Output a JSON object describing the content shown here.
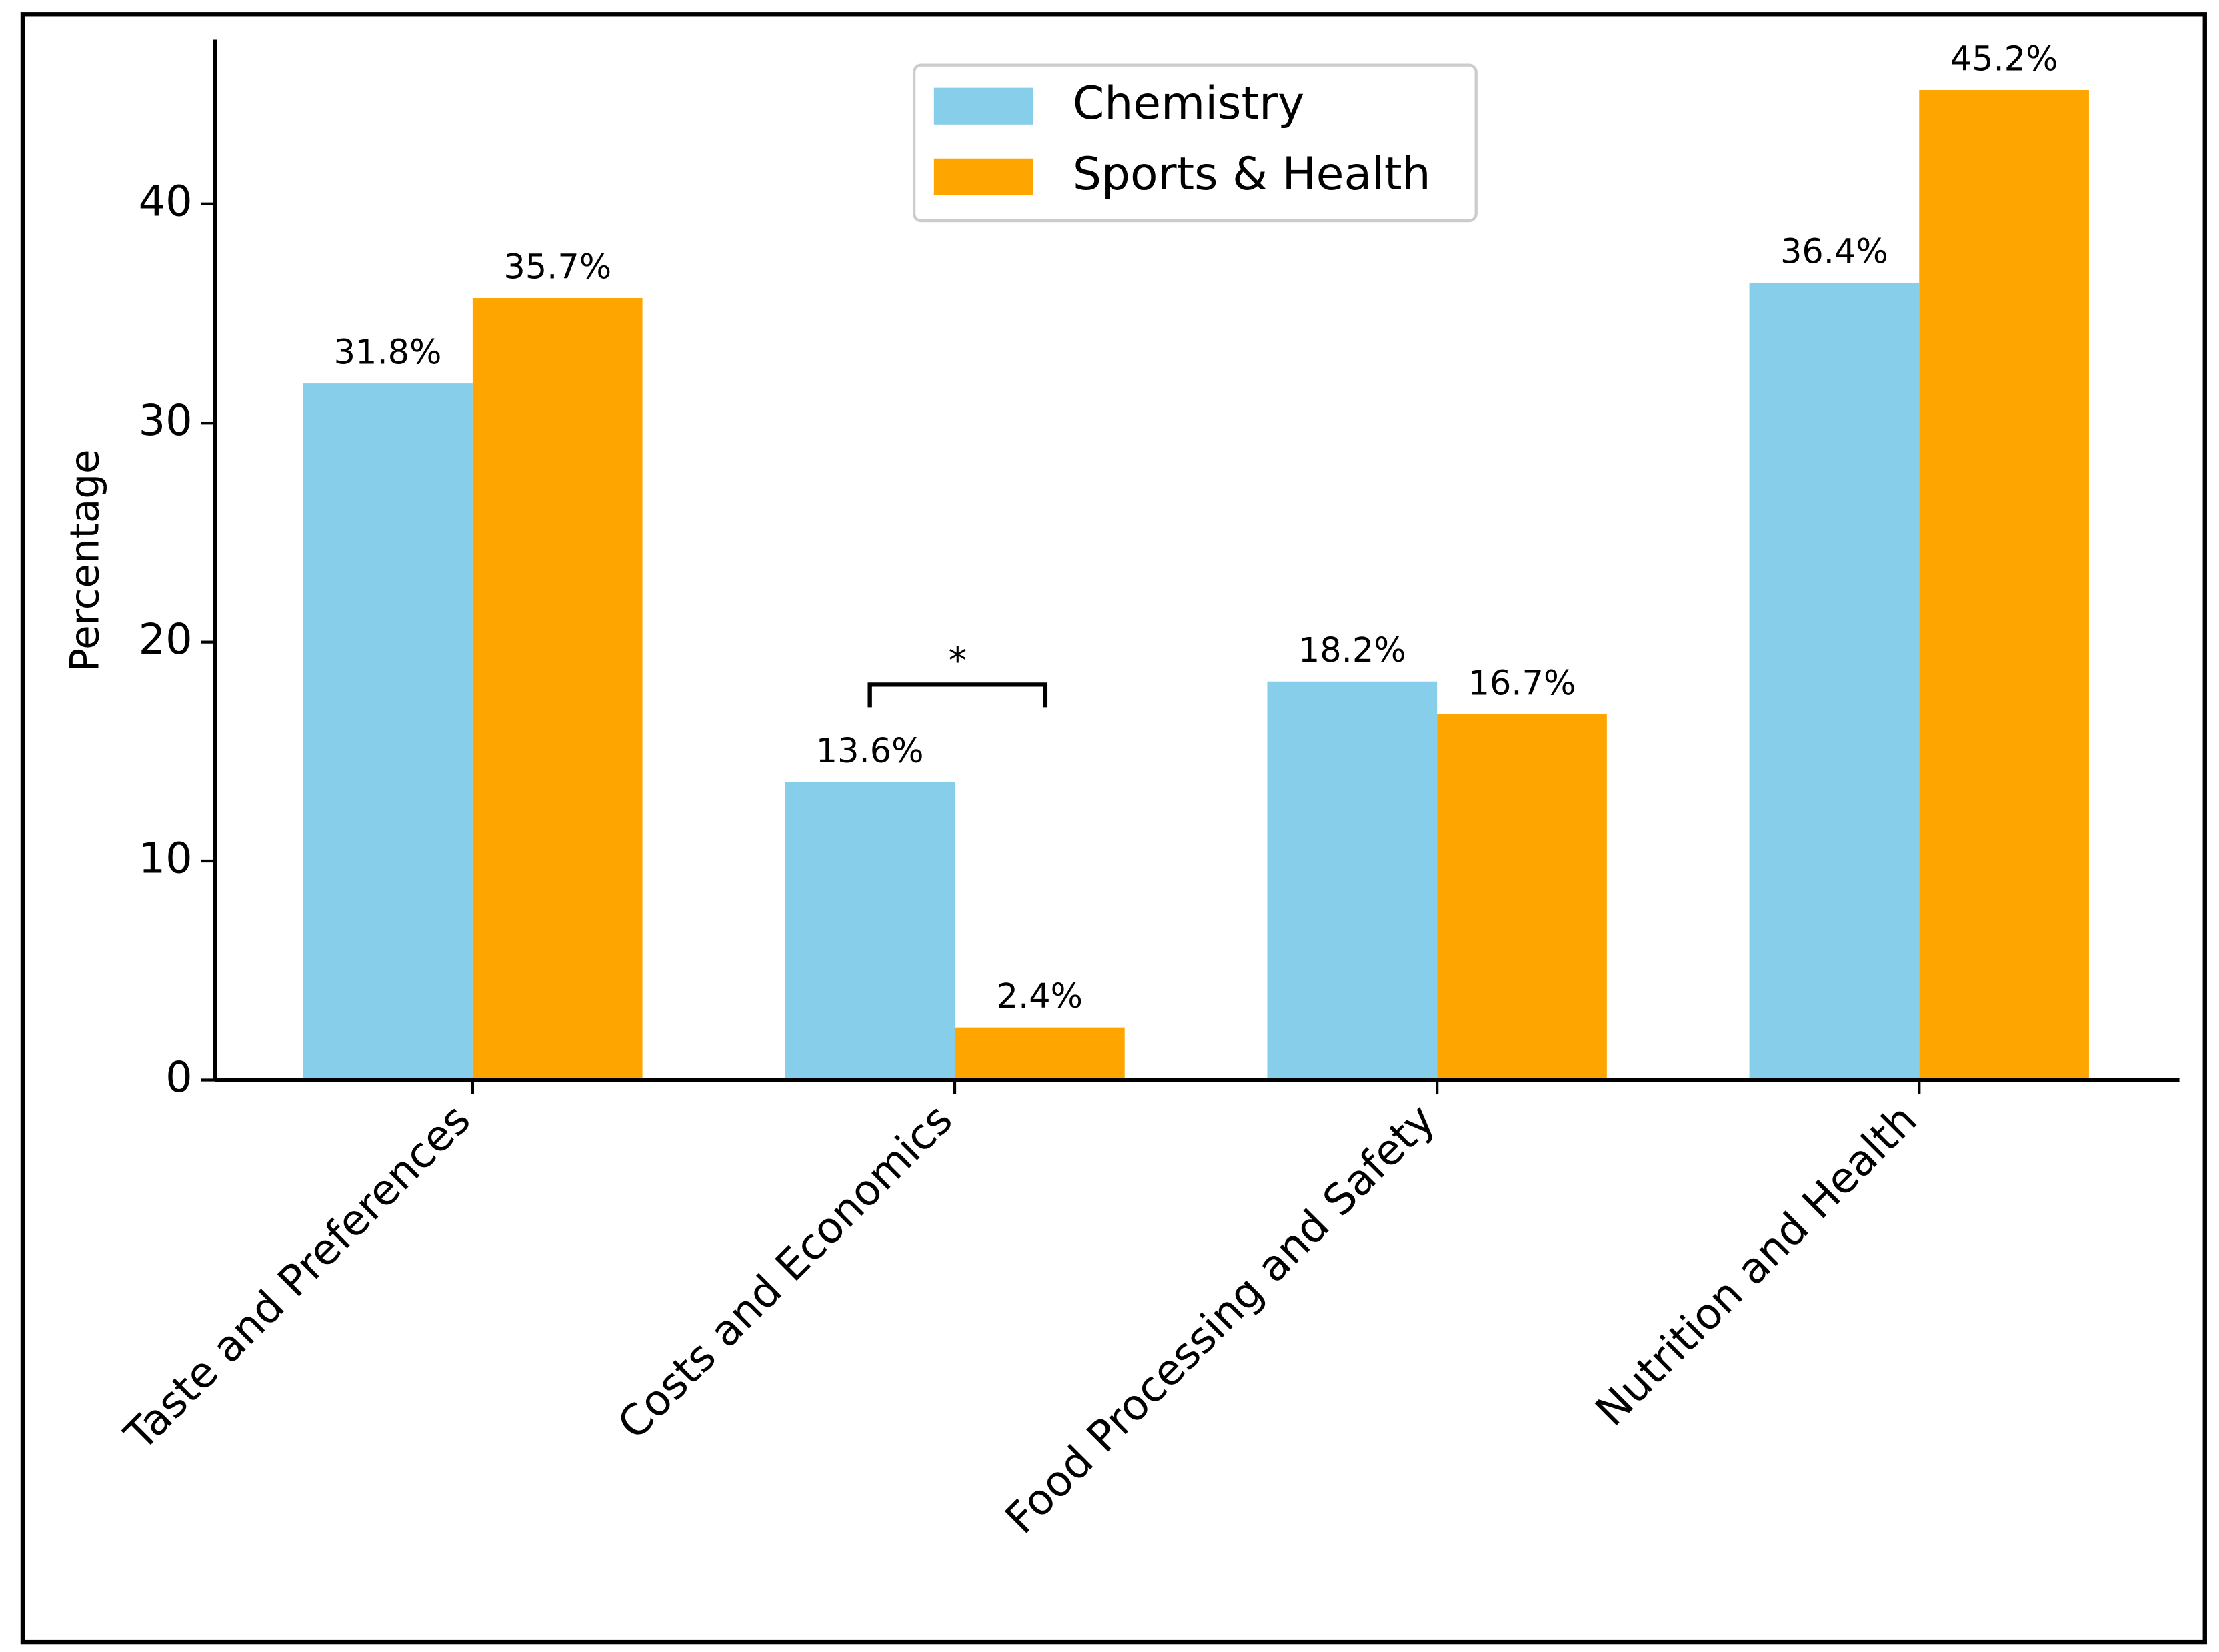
{
  "chart_data": {
    "type": "bar",
    "y_label": "Percentage",
    "categories": [
      "Taste and Preferences",
      "Costs and Economics",
      "Food Processing and Safety",
      "Nutrition and Health"
    ],
    "series": [
      {
        "name": "Chemistry",
        "color": "#87ceeb",
        "values": [
          31.8,
          13.6,
          18.2,
          36.4
        ],
        "value_labels": [
          "31.8%",
          "13.6%",
          "18.2%",
          "36.4%"
        ]
      },
      {
        "name": "Sports & Health",
        "color": "#ffa500",
        "values": [
          35.7,
          2.4,
          16.7,
          45.2
        ],
        "value_labels": [
          "35.7%",
          "2.4%",
          "16.7%",
          "45.2%"
        ]
      }
    ],
    "ylim": [
      0,
      47.5
    ],
    "yticks": [
      0,
      10,
      20,
      30,
      40
    ],
    "annotation": "*",
    "legend": "upper center"
  }
}
